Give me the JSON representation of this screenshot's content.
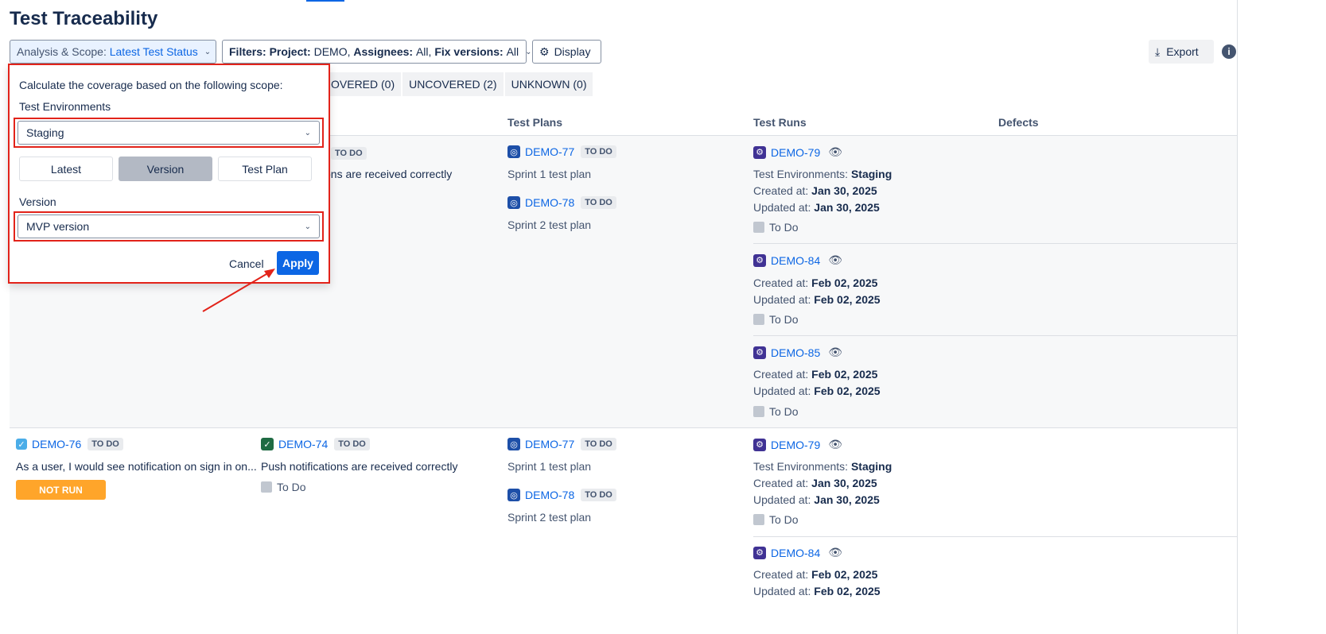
{
  "page": {
    "title": "Test Traceability"
  },
  "toolbar": {
    "analysis_label": "Analysis & Scope:",
    "analysis_value": "Latest Test Status",
    "filters_label": "Filters:",
    "project_label": "Project:",
    "project_value": "DEMO,",
    "assignees_label": "Assignees:",
    "assignees_value": "All,",
    "fix_label": "Fix versions:",
    "fix_value": "All",
    "display_label": "Display",
    "export_label": "Export"
  },
  "tabs": [
    "OVERED (0)",
    "UNCOVERED (2)",
    "UNKNOWN (0)"
  ],
  "columns": {
    "test_plans": "Test Plans",
    "test_runs": "Test Runs",
    "defects": "Defects"
  },
  "popup": {
    "intro": "Calculate the coverage based on the following scope:",
    "env_label": "Test Environments",
    "env_value": "Staging",
    "segments": [
      "Latest",
      "Version",
      "Test Plan"
    ],
    "active_segment": "Version",
    "version_label": "Version",
    "version_value": "MVP version",
    "cancel": "Cancel",
    "apply": "Apply"
  },
  "row1": {
    "req_status": "TO DO",
    "test_summary_partial": "ons are received correctly",
    "plans": [
      {
        "key": "DEMO-77",
        "status": "TO DO",
        "name": "Sprint 1 test plan"
      },
      {
        "key": "DEMO-78",
        "status": "TO DO",
        "name": "Sprint 2 test plan"
      }
    ],
    "runs": [
      {
        "key": "DEMO-79",
        "env_label": "Test Environments:",
        "env": "Staging",
        "created_label": "Created at:",
        "created": "Jan 30, 2025",
        "updated_label": "Updated at:",
        "updated": "Jan 30, 2025",
        "status": "To Do"
      },
      {
        "key": "DEMO-84",
        "created_label": "Created at:",
        "created": "Feb 02, 2025",
        "updated_label": "Updated at:",
        "updated": "Feb 02, 2025",
        "status": "To Do"
      },
      {
        "key": "DEMO-85",
        "created_label": "Created at:",
        "created": "Feb 02, 2025",
        "updated_label": "Updated at:",
        "updated": "Feb 02, 2025",
        "status": "To Do"
      }
    ]
  },
  "row2": {
    "req_key": "DEMO-76",
    "req_status": "TO DO",
    "req_summary": "As a user, I would see notification on sign in on...",
    "req_result": "NOT RUN",
    "test_key": "DEMO-74",
    "test_status": "TO DO",
    "test_summary": "Push notifications are received correctly",
    "test_run_status": "To Do",
    "plans": [
      {
        "key": "DEMO-77",
        "status": "TO DO",
        "name": "Sprint 1 test plan"
      },
      {
        "key": "DEMO-78",
        "status": "TO DO",
        "name": "Sprint 2 test plan"
      }
    ],
    "runs": [
      {
        "key": "DEMO-79",
        "env_label": "Test Environments:",
        "env": "Staging",
        "created_label": "Created at:",
        "created": "Jan 30, 2025",
        "updated_label": "Updated at:",
        "updated": "Jan 30, 2025",
        "status": "To Do"
      },
      {
        "key": "DEMO-84",
        "created_label": "Created at:",
        "created": "Feb 02, 2025",
        "updated_label": "Updated at:",
        "updated": "Feb 02, 2025"
      }
    ]
  },
  "colors": {
    "accent": "#0c66e4",
    "highlight": "#e2231a",
    "not_run": "#ffa52a"
  }
}
